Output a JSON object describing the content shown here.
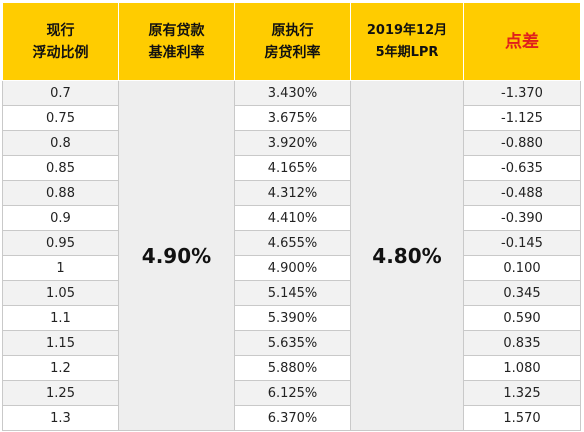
{
  "headers": [
    {
      "line1": "现行",
      "line2": "浮动比例"
    },
    {
      "line1": "原有贷款",
      "line2": "基准利率"
    },
    {
      "line1": "原执行",
      "line2": "房贷利率"
    },
    {
      "line1": "2019年12月",
      "line2": "5年期LPR"
    },
    {
      "line1": "点差",
      "line2": ""
    }
  ],
  "base_rate": "4.90%",
  "lpr_rate": "4.80%",
  "rows": [
    {
      "ratio": "0.7",
      "rate": "3.430%",
      "spread": "-1.370"
    },
    {
      "ratio": "0.75",
      "rate": "3.675%",
      "spread": "-1.125"
    },
    {
      "ratio": "0.8",
      "rate": "3.920%",
      "spread": "-0.880"
    },
    {
      "ratio": "0.85",
      "rate": "4.165%",
      "spread": "-0.635"
    },
    {
      "ratio": "0.88",
      "rate": "4.312%",
      "spread": "-0.488"
    },
    {
      "ratio": "0.9",
      "rate": "4.410%",
      "spread": "-0.390"
    },
    {
      "ratio": "0.95",
      "rate": "4.655%",
      "spread": "-0.145"
    },
    {
      "ratio": "1",
      "rate": "4.900%",
      "spread": "0.100"
    },
    {
      "ratio": "1.05",
      "rate": "5.145%",
      "spread": "0.345"
    },
    {
      "ratio": "1.1",
      "rate": "5.390%",
      "spread": "0.590"
    },
    {
      "ratio": "1.15",
      "rate": "5.635%",
      "spread": "0.835"
    },
    {
      "ratio": "1.2",
      "rate": "5.880%",
      "spread": "1.080"
    },
    {
      "ratio": "1.25",
      "rate": "6.125%",
      "spread": "1.325"
    },
    {
      "ratio": "1.3",
      "rate": "6.370%",
      "spread": "1.570"
    }
  ],
  "colors": {
    "header_bg": "#ffcc00",
    "highlight_text": "#e0201c",
    "merged_bg": "#eeeeee"
  }
}
